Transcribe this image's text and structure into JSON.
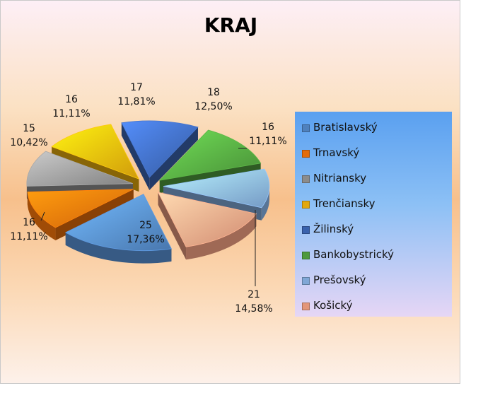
{
  "chart_data": {
    "type": "pie",
    "title": "KRAJ",
    "slices": [
      {
        "name": "Bratislavský",
        "value": 25,
        "percent": "17,36%",
        "color": "#4f81bd"
      },
      {
        "name": "Trnavský",
        "value": 16,
        "percent": "11,11%",
        "color": "#e46c0a"
      },
      {
        "name": "Nitriansky",
        "value": 15,
        "percent": "10,42%",
        "color": "#8c8c8c"
      },
      {
        "name": "Trenčiansky",
        "value": 16,
        "percent": "11,11%",
        "color": "#e3a80c"
      },
      {
        "name": "Žilinský",
        "value": 17,
        "percent": "11,81%",
        "color": "#3a62ad"
      },
      {
        "name": "Bankobystrický",
        "value": 18,
        "percent": "12,50%",
        "color": "#4e9a3c"
      },
      {
        "name": "Prešovský",
        "value": 16,
        "percent": "11,11%",
        "color": "#7fa7d6"
      },
      {
        "name": "Košický",
        "value": 21,
        "percent": "14,58%",
        "color": "#e3967a"
      }
    ],
    "legend_position": "right",
    "exploded": true,
    "style": "3d"
  }
}
